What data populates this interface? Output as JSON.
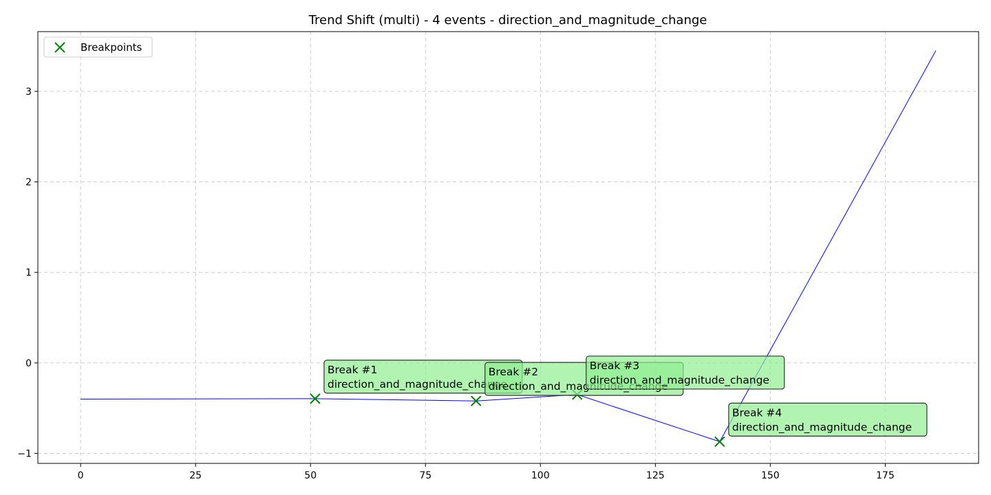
{
  "chart_data": {
    "type": "line",
    "title": "Trend Shift (multi) - 4 events - direction_and_magnitude_change",
    "xlabel": "",
    "ylabel": "",
    "xlim": [
      -9.3,
      195.3
    ],
    "ylim": [
      -1.11,
      3.66
    ],
    "xticks": [
      0,
      25,
      50,
      75,
      100,
      125,
      150,
      175
    ],
    "yticks": [
      -1,
      0,
      1,
      2,
      3
    ],
    "ytick_labels": [
      "−1",
      "0",
      "1",
      "2",
      "3"
    ],
    "grid": true,
    "legend": {
      "placement": "top-left",
      "entries": [
        {
          "label": "Breakpoints",
          "marker": "x",
          "color": "#008000"
        }
      ]
    },
    "series": [
      {
        "color": "#0000ff",
        "points": [
          [
            0,
            -0.4
          ],
          [
            51,
            -0.395
          ],
          [
            86,
            -0.42
          ],
          [
            108,
            -0.35
          ],
          [
            139,
            -0.87
          ],
          [
            186,
            3.45
          ]
        ]
      }
    ],
    "breakpoints": [
      {
        "x": 51,
        "y": -0.395
      },
      {
        "x": 86,
        "y": -0.42
      },
      {
        "x": 108,
        "y": -0.35
      },
      {
        "x": 139,
        "y": -0.87
      }
    ],
    "annotations": [
      {
        "line1": "Break #1",
        "line2": "direction_and_magnitude_change"
      },
      {
        "line1": "Break #2",
        "line2": "direction_and_magnitude_change"
      },
      {
        "line1": "Break #3",
        "line2": "direction_and_magnitude_change"
      },
      {
        "line1": "Break #4",
        "line2": "direction_and_magnitude_change"
      }
    ],
    "colors": {
      "line": "#0000ff",
      "marker": "#008000",
      "annotation_fill": "#90ee90",
      "grid": "#cccccc"
    }
  }
}
